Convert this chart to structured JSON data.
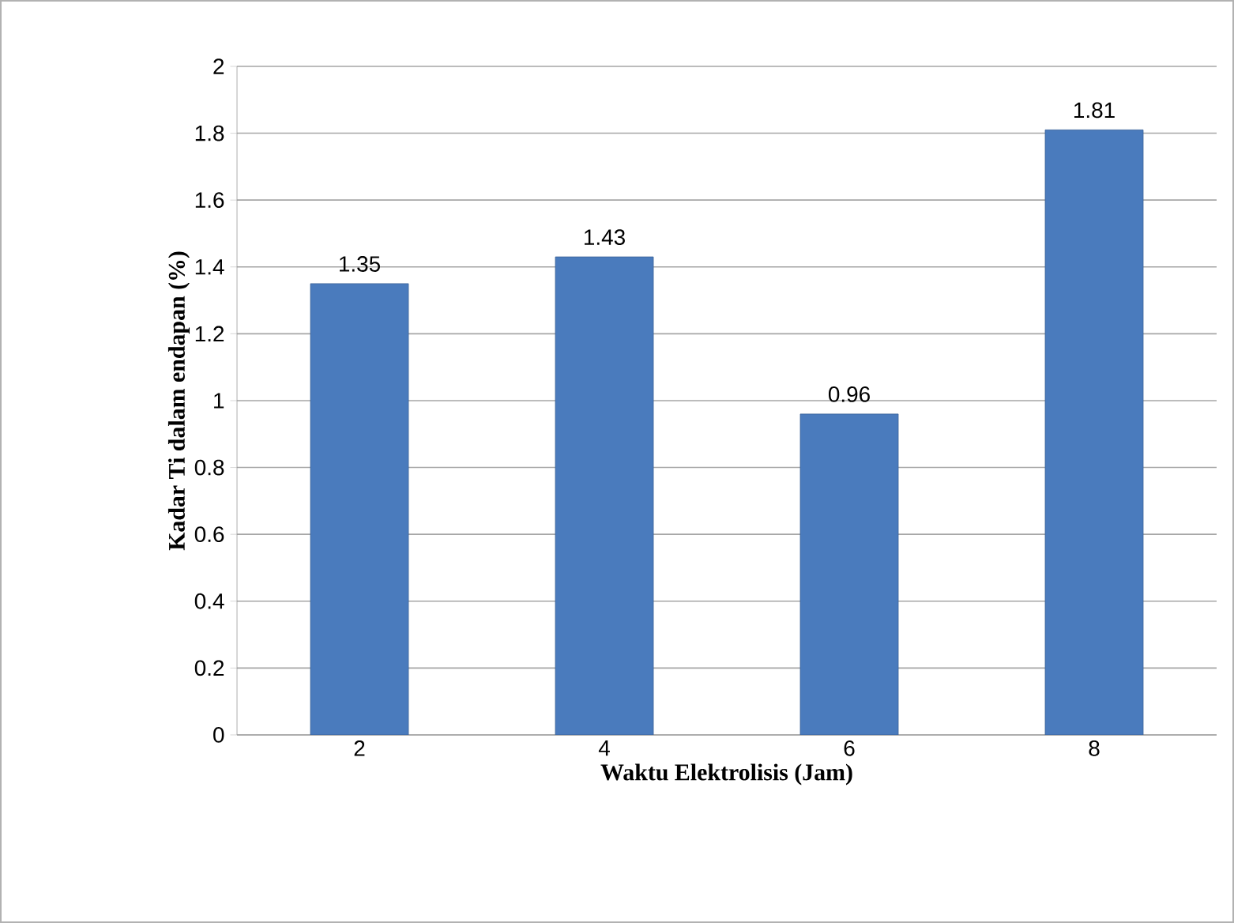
{
  "chart_data": {
    "type": "bar",
    "xlabel": "Waktu Elektrolisis (Jam)",
    "ylabel": "Kadar Ti dalam endapan (%)",
    "categories": [
      "2",
      "4",
      "6",
      "8"
    ],
    "values": [
      1.35,
      1.43,
      0.96,
      1.81
    ],
    "color": "#4a7bbd",
    "ylim": [
      0,
      2
    ],
    "yticks": [
      0,
      0.2,
      0.4,
      0.6,
      0.8,
      1,
      1.2,
      1.4,
      1.6,
      1.8,
      2
    ],
    "grid": "y",
    "data_labels": true
  }
}
